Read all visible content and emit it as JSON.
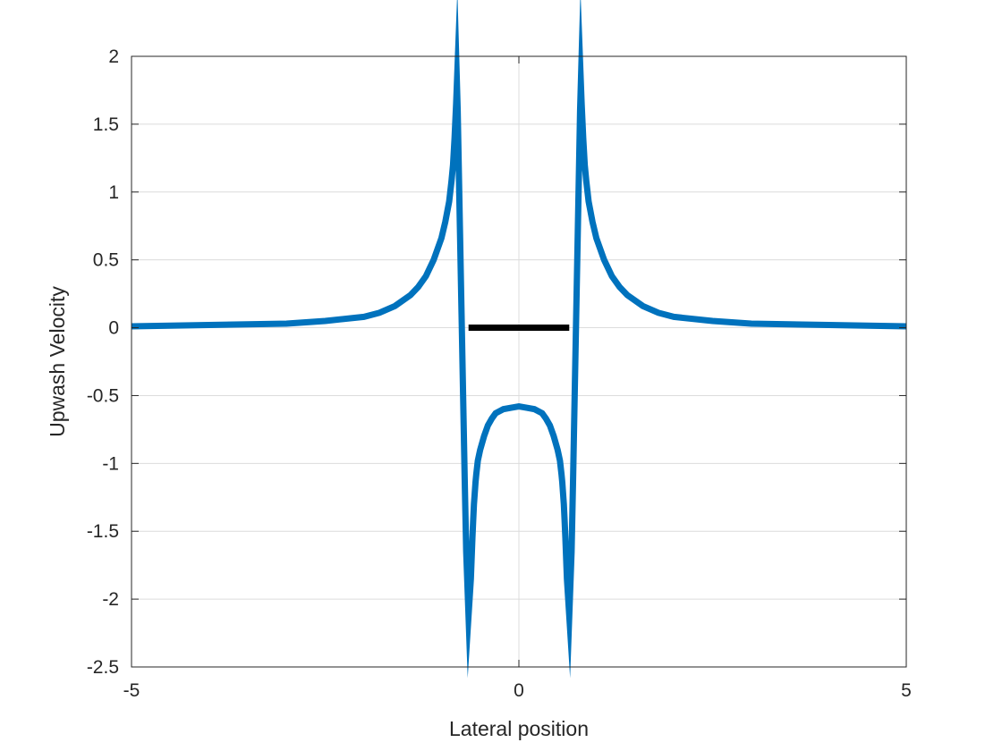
{
  "chart_data": {
    "type": "line",
    "title": "",
    "xlabel": "Lateral position",
    "ylabel": "Upwash Velocity",
    "xlim": [
      -5,
      5
    ],
    "ylim": [
      -2.5,
      2
    ],
    "xticks": [
      -5,
      0,
      5
    ],
    "xtick_labels": [
      "-5",
      "0",
      "5"
    ],
    "yticks": [
      -2.5,
      -2,
      -1.5,
      -1,
      -0.5,
      0,
      0.5,
      1,
      1.5,
      2
    ],
    "ytick_labels": [
      "-2.5",
      "-2",
      "-1.5",
      "-1",
      "-0.5",
      "0",
      "0.5",
      "1",
      "1.5",
      "2"
    ],
    "grid": true,
    "box": true,
    "series": [
      {
        "color": "#0072BD",
        "x": [
          -5.0,
          -4.0,
          -3.0,
          -2.5,
          -2.0,
          -1.8,
          -1.6,
          -1.4,
          -1.3,
          -1.2,
          -1.1,
          -1.0,
          -0.95,
          -0.9,
          -0.87,
          -0.85,
          -0.83,
          -0.81,
          -0.8,
          -0.79,
          -0.78,
          -0.76,
          -0.74,
          -0.72,
          -0.7,
          -0.68,
          -0.65,
          -0.62,
          -0.6,
          -0.59,
          -0.58,
          -0.57,
          -0.56,
          -0.55,
          -0.53,
          -0.5,
          -0.45,
          -0.4,
          -0.35,
          -0.3,
          -0.2,
          -0.1,
          0.0,
          0.1,
          0.2,
          0.3,
          0.35,
          0.4,
          0.45,
          0.5,
          0.53,
          0.55,
          0.56,
          0.57,
          0.58,
          0.59,
          0.6,
          0.62,
          0.65,
          0.68,
          0.7,
          0.72,
          0.74,
          0.76,
          0.78,
          0.79,
          0.8,
          0.81,
          0.83,
          0.85,
          0.87,
          0.9,
          0.95,
          1.0,
          1.1,
          1.2,
          1.3,
          1.4,
          1.6,
          1.8,
          2.0,
          2.5,
          3.0,
          4.0,
          5.0
        ],
        "y": [
          0.01,
          0.02,
          0.03,
          0.05,
          0.08,
          0.11,
          0.16,
          0.24,
          0.3,
          0.38,
          0.5,
          0.66,
          0.78,
          0.93,
          1.08,
          1.2,
          1.4,
          1.65,
          1.8,
          1.6,
          1.3,
          0.7,
          0.1,
          -0.5,
          -1.1,
          -1.65,
          -2.12,
          -1.85,
          -1.55,
          -1.42,
          -1.3,
          -1.22,
          -1.14,
          -1.08,
          -0.98,
          -0.9,
          -0.8,
          -0.72,
          -0.67,
          -0.63,
          -0.6,
          -0.59,
          -0.58,
          -0.59,
          -0.6,
          -0.63,
          -0.67,
          -0.72,
          -0.8,
          -0.9,
          -0.98,
          -1.08,
          -1.14,
          -1.22,
          -1.3,
          -1.42,
          -1.55,
          -1.85,
          -2.12,
          -1.65,
          -1.1,
          -0.5,
          0.1,
          0.7,
          1.3,
          1.6,
          1.8,
          1.65,
          1.4,
          1.2,
          1.08,
          0.93,
          0.78,
          0.66,
          0.5,
          0.38,
          0.3,
          0.24,
          0.16,
          0.11,
          0.08,
          0.05,
          0.03,
          0.02,
          0.01
        ]
      },
      {
        "color": "#000000",
        "x": [
          -0.65,
          0.65
        ],
        "y": [
          0,
          0
        ]
      }
    ]
  }
}
